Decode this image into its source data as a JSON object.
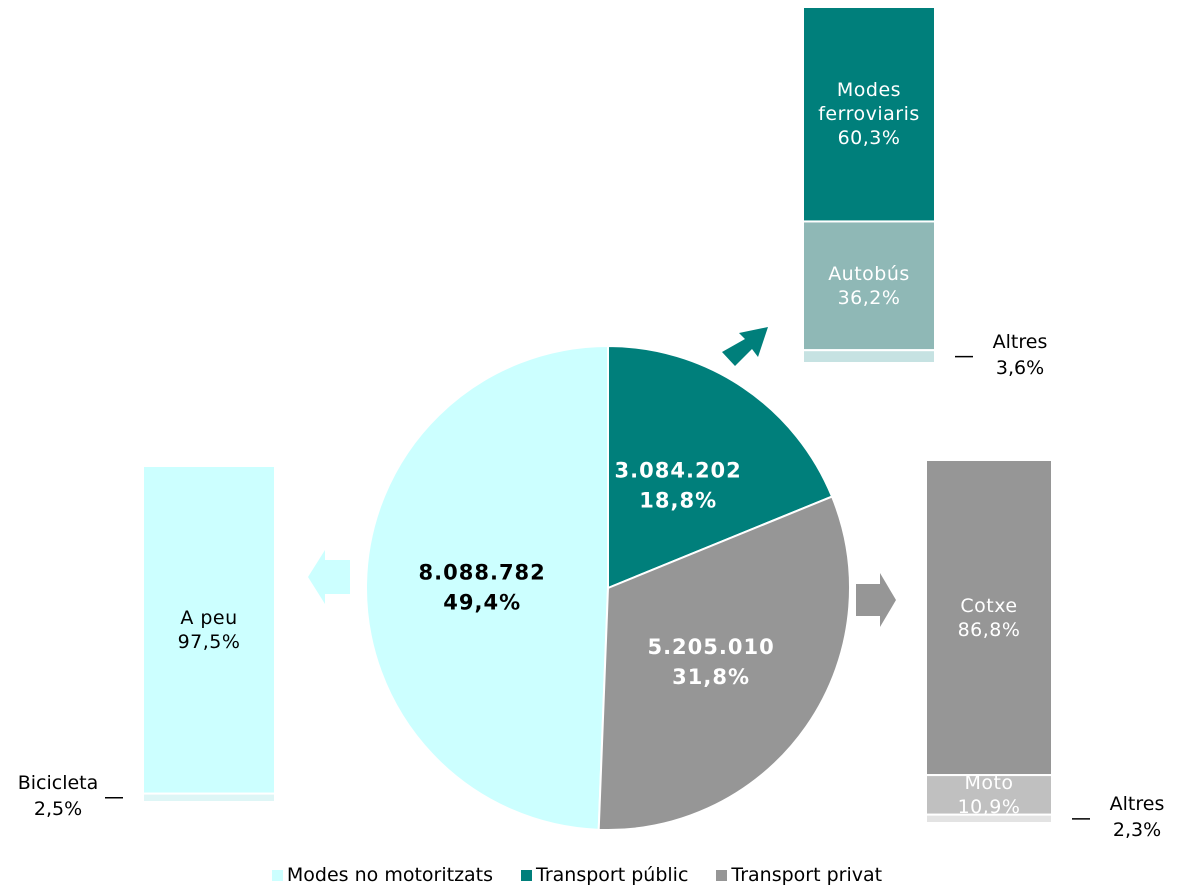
{
  "chart_data": [
    {
      "type": "pie",
      "categories": [
        "Modes no motoritzats",
        "Transport públic",
        "Transport privat"
      ],
      "values": [
        8088782,
        3084202,
        5205010
      ],
      "value_labels": [
        "8.088.782",
        "3.084.202",
        "5.205.010"
      ],
      "percents": [
        49.4,
        18.8,
        31.8
      ],
      "percent_labels": [
        "49,4%",
        "18,8%",
        "31,8%"
      ],
      "colors": [
        "#ccffff",
        "#007f7b",
        "#969696"
      ],
      "legend": "bottom"
    },
    {
      "type": "stacked_bar",
      "categories": [
        "A peu",
        "Bicicleta"
      ],
      "values": [
        97.5,
        2.5
      ],
      "value_labels": [
        "97,5%",
        "2,5%"
      ],
      "colors": [
        "#ccffff",
        "#def6f6"
      ]
    },
    {
      "type": "stacked_bar",
      "categories": [
        "Modes ferroviaris",
        "Autobús",
        "Altres"
      ],
      "values": [
        60.3,
        36.2,
        3.6
      ],
      "value_labels": [
        "60,3%",
        "36,2%",
        "3,6%"
      ],
      "colors": [
        "#007f7b",
        "#8fb8b6",
        "#c6e2e2"
      ]
    },
    {
      "type": "stacked_bar",
      "categories": [
        "Cotxe",
        "Moto",
        "Altres"
      ],
      "values": [
        86.8,
        10.9,
        2.3
      ],
      "value_labels": [
        "86,8%",
        "10,9%",
        "2,3%"
      ],
      "colors": [
        "#969696",
        "#c0c0c0",
        "#e3e3e3"
      ]
    }
  ]
}
